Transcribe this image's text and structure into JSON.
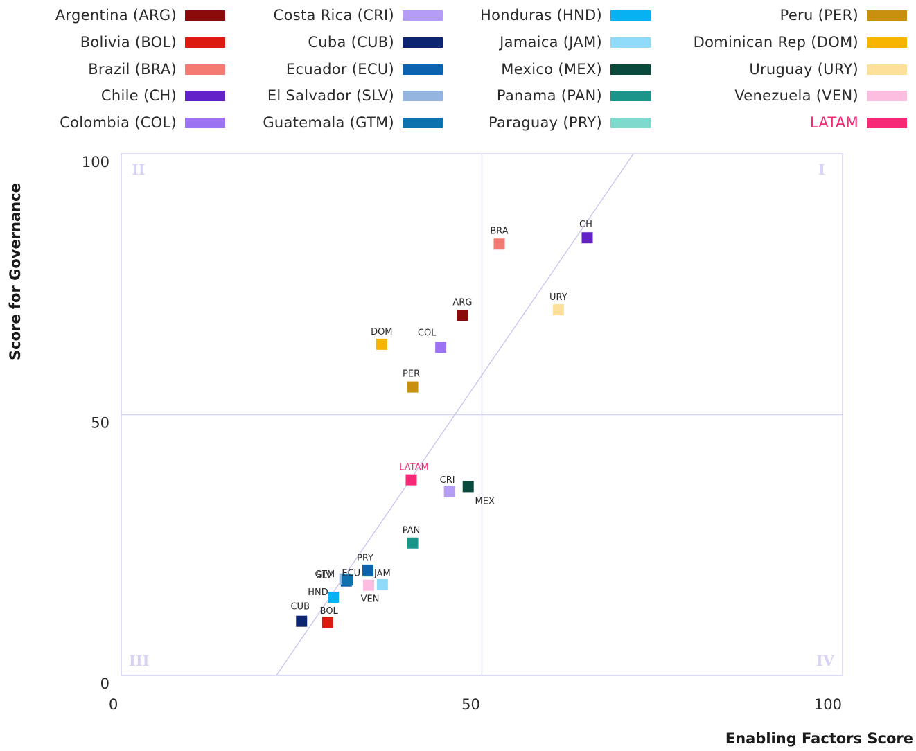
{
  "chart_data": {
    "type": "scatter",
    "xlabel": "Enabling Factors Score",
    "ylabel": "Score for Governance",
    "xlim": [
      0,
      100
    ],
    "ylim": [
      0,
      100
    ],
    "x_ticks": [
      "0",
      "50",
      "100"
    ],
    "y_ticks": [
      "0",
      "50",
      "100"
    ],
    "grid": "quadrants at 50",
    "quadrant_labels": {
      "top_left": "II",
      "top_right": "I",
      "bottom_left": "III",
      "bottom_right": "IV"
    },
    "trend_line": {
      "from": [
        21.5,
        0
      ],
      "to": [
        71,
        100
      ]
    },
    "legend": {
      "placement": "top",
      "columns": 4
    },
    "series": [
      {
        "name": "Argentina (ARG)",
        "code": "ARG",
        "color": "#8b0a0a",
        "x": 47.3,
        "y": 69.0
      },
      {
        "name": "Bolivia (BOL)",
        "code": "BOL",
        "color": "#dd1a0f",
        "x": 28.6,
        "y": 10.2
      },
      {
        "name": "Brazil (BRA)",
        "code": "BRA",
        "color": "#f47a74",
        "x": 52.4,
        "y": 82.7
      },
      {
        "name": "Chile (CH)",
        "code": "CH",
        "color": "#6321c9",
        "x": 64.6,
        "y": 83.9
      },
      {
        "name": "Colombia (COL)",
        "code": "COL",
        "color": "#9b72f2",
        "x": 44.3,
        "y": 62.9
      },
      {
        "name": "Costa Rica (CRI)",
        "code": "CRI",
        "color": "#b59cf5",
        "x": 45.5,
        "y": 35.2
      },
      {
        "name": "Cuba (CUB)",
        "code": "CUB",
        "color": "#0d2470",
        "x": 25.0,
        "y": 10.4
      },
      {
        "name": "Ecuador (ECU)",
        "code": "ECU",
        "color": "#0b63b0",
        "x": 31.2,
        "y": 18.1
      },
      {
        "name": "El Salvador (SLV)",
        "code": "SLV",
        "color": "#93b5df",
        "x": 31.0,
        "y": 18.5
      },
      {
        "name": "Guatemala (GTM)",
        "code": "GTM",
        "color": "#0e72ae",
        "x": 31.4,
        "y": 18.3
      },
      {
        "name": "Honduras (HND)",
        "code": "HND",
        "color": "#08b1f2",
        "x": 29.4,
        "y": 15.0
      },
      {
        "name": "Jamaica (JAM)",
        "code": "JAM",
        "color": "#90dbfa",
        "x": 36.2,
        "y": 17.4
      },
      {
        "name": "Mexico (MEX)",
        "code": "MEX",
        "color": "#0a4a3c",
        "x": 48.1,
        "y": 36.2
      },
      {
        "name": "Panama (PAN)",
        "code": "PAN",
        "color": "#1b958a",
        "x": 40.4,
        "y": 25.4
      },
      {
        "name": "Paraguay (PRY)",
        "code": "PRY",
        "color": "#7fd9cc",
        "x": 34.2,
        "y": 20.0
      },
      {
        "name": "Peru (PER)",
        "code": "PER",
        "color": "#c8900e",
        "x": 40.4,
        "y": 55.3
      },
      {
        "name": "Dominican Rep (DOM)",
        "code": "DOM",
        "color": "#f7b500",
        "x": 36.1,
        "y": 63.5
      },
      {
        "name": "Uruguay (URY)",
        "code": "URY",
        "color": "#fde19a",
        "x": 60.6,
        "y": 70.1
      },
      {
        "name": "Venezuela (VEN)",
        "code": "VEN",
        "color": "#fdbde0",
        "x": 34.3,
        "y": 17.3
      },
      {
        "name": "LATAM",
        "code": "LATAM",
        "color": "#f72876",
        "x": 40.2,
        "y": 37.5,
        "label_color": "#f72876"
      }
    ],
    "overlay_points": [
      {
        "code": "PRY",
        "color": "#0b63b0",
        "x": 34.2,
        "y": 20.2
      }
    ]
  }
}
